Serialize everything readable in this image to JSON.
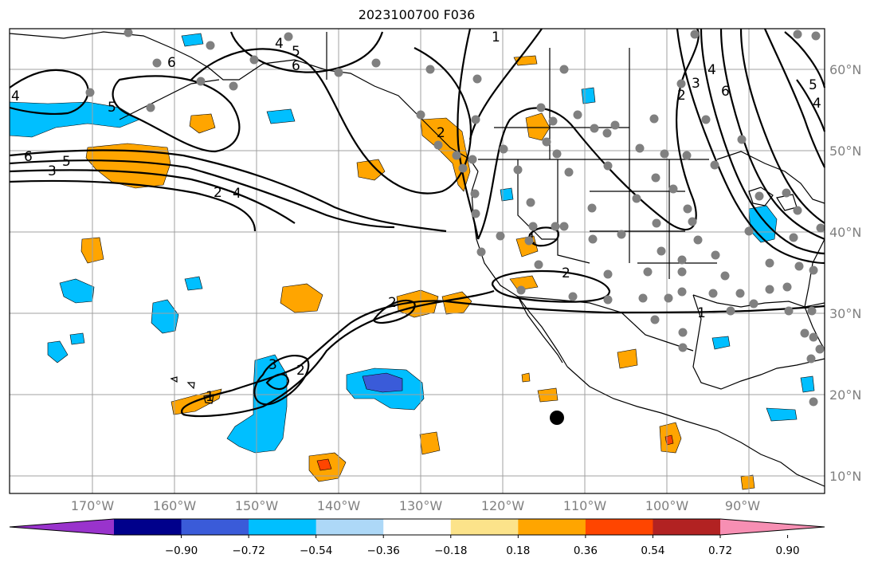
{
  "title": "2023100700 F036",
  "latitude_labels": [
    "60°N",
    "50°N",
    "40°N",
    "30°N",
    "20°N",
    "10°N"
  ],
  "longitude_labels": [
    "170°W",
    "160°W",
    "150°W",
    "140°W",
    "130°W",
    "120°W",
    "110°W",
    "100°W",
    "90°W"
  ],
  "colorbar": {
    "ticks": [
      "−0.90",
      "−0.72",
      "−0.54",
      "−0.36",
      "−0.18",
      "0.18",
      "0.36",
      "0.54",
      "0.72",
      "0.90"
    ],
    "colors": [
      "#9933cc",
      "#00008b",
      "#3a5bd9",
      "#00bfff",
      "#add8f7",
      "#ffffff",
      "#fce38a",
      "#ffa500",
      "#ff4500",
      "#b22222",
      "#f78fb3"
    ]
  },
  "contour_labels": [
    "6",
    "5",
    "4",
    "3",
    "2",
    "1"
  ],
  "colors": {
    "contour": "#000000",
    "grid": "#a0a0a0",
    "station_dot": "#808080",
    "marker": "#000000"
  }
}
